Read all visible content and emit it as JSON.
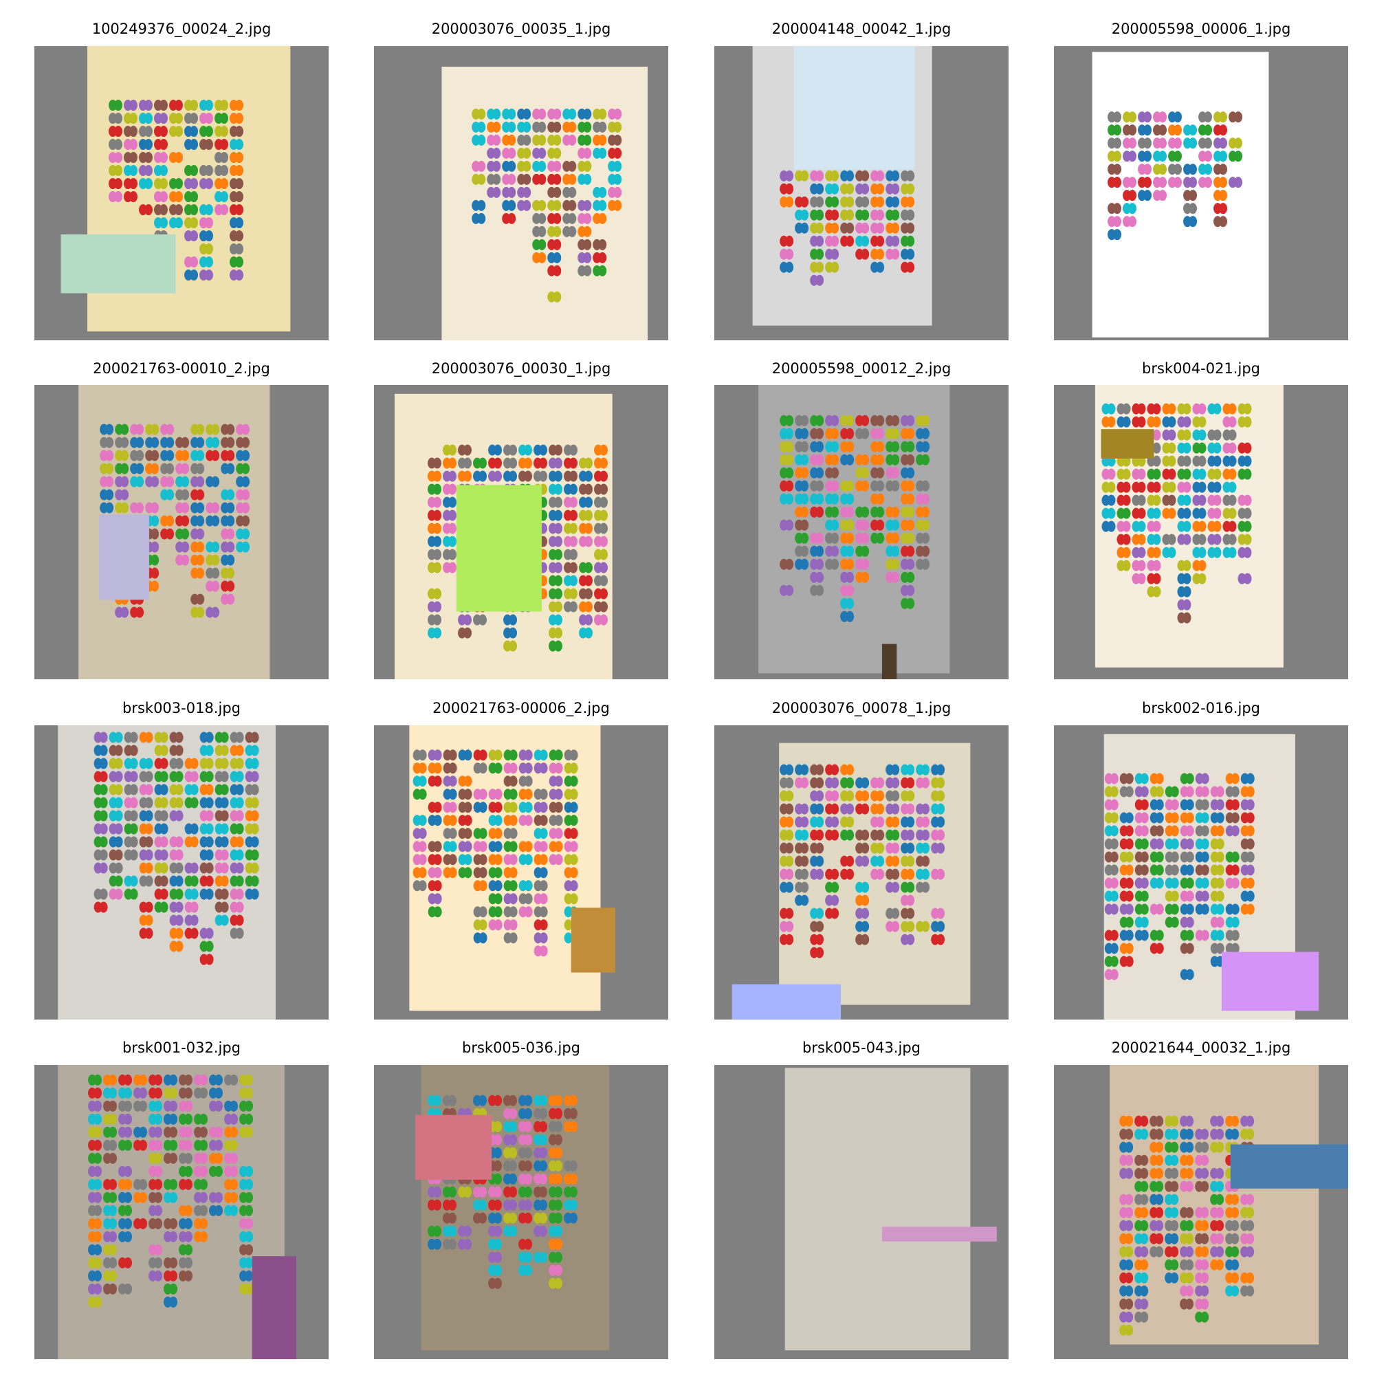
{
  "images": [
    {
      "title": "100249376_00024_2.jpg"
    },
    {
      "title": "200003076_00035_1.jpg"
    },
    {
      "title": "200004148_00042_1.jpg"
    },
    {
      "title": "200005598_00006_1.jpg"
    },
    {
      "title": "200021763-00010_2.jpg"
    },
    {
      "title": "200003076_00030_1.jpg"
    },
    {
      "title": "200005598_00012_2.jpg"
    },
    {
      "title": "brsk004-021.jpg"
    },
    {
      "title": "brsk003-018.jpg"
    },
    {
      "title": "200021763-00006_2.jpg"
    },
    {
      "title": "200003076_00078_1.jpg"
    },
    {
      "title": "brsk002-016.jpg"
    },
    {
      "title": "brsk001-032.jpg"
    },
    {
      "title": "brsk005-036.jpg"
    },
    {
      "title": "brsk005-043.jpg"
    },
    {
      "title": "200021644_00032_1.jpg"
    }
  ]
}
